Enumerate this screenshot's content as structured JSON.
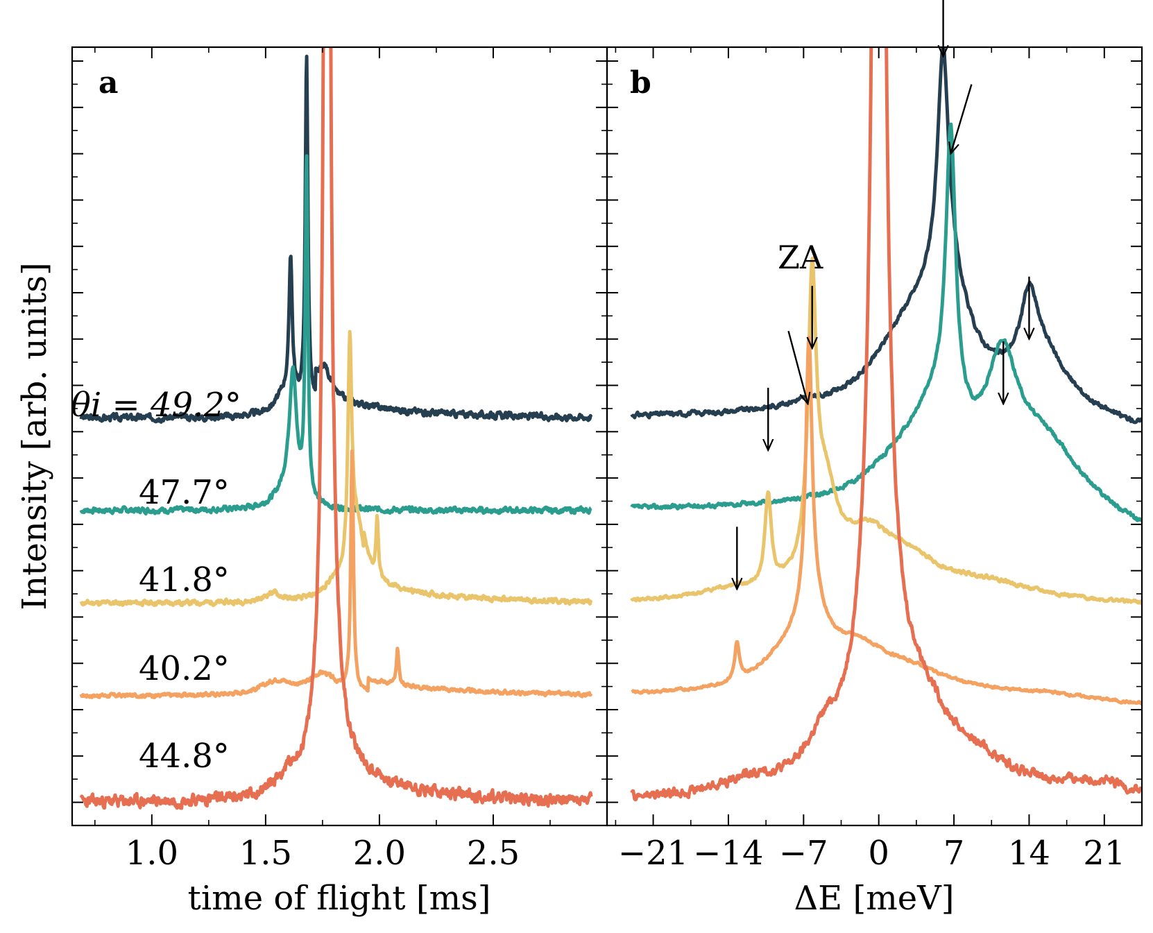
{
  "figure": {
    "ylabel": "Intensity [arb. units]",
    "annotation_label": "ZA"
  },
  "chart_data": [
    {
      "panel": "a",
      "type": "line",
      "xlabel": "time of flight [ms]",
      "ylabel": "Intensity [arb. units]",
      "xlim": [
        0.65,
        3.0
      ],
      "xticks": [
        1.0,
        1.5,
        2.0,
        2.5
      ],
      "xtick_labels": [
        "1.0",
        "1.5",
        "2.0",
        "2.5"
      ],
      "ylim": [
        -0.5,
        16.3
      ],
      "series": [
        {
          "name": "θi = 49.2°",
          "label": "θi = 49.2°",
          "color": "#263f50",
          "offset": 8.3,
          "noise": 0.12,
          "seed": 3,
          "peaks": [
            [
              1.61,
              2.9,
              0.008
            ],
            [
              1.68,
              7.5,
              0.007
            ],
            [
              1.76,
              0.6,
              0.03
            ],
            [
              1.6,
              0.6,
              0.06
            ]
          ],
          "tail": [
            [
              1.72,
              0.45,
              0.35
            ]
          ]
        },
        {
          "name": "47.7°",
          "label": "47.7°",
          "color": "#2a9d8f",
          "offset": 6.3,
          "noise": 0.1,
          "seed": 7,
          "peaks": [
            [
              1.62,
              2.6,
              0.018
            ],
            [
              1.68,
              7.3,
              0.007
            ],
            [
              1.6,
              0.5,
              0.06
            ]
          ],
          "tail": []
        },
        {
          "name": "41.8°",
          "label": "41.8°",
          "color": "#e9c46a",
          "offset": 4.3,
          "noise": 0.09,
          "seed": 11,
          "peaks": [
            [
              1.87,
              4.7,
              0.01
            ],
            [
              1.9,
              1.6,
              0.04
            ],
            [
              1.99,
              1.3,
              0.006
            ],
            [
              1.53,
              0.2,
              0.04
            ],
            [
              1.8,
              0.3,
              0.06
            ]
          ],
          "tail": [
            [
              1.93,
              0.35,
              0.4
            ]
          ]
        },
        {
          "name": "40.2°",
          "label": "40.2°",
          "color": "#f4a261",
          "offset": 2.3,
          "noise": 0.07,
          "seed": 17,
          "peaks": [
            [
              1.88,
              5.2,
              0.007
            ],
            [
              2.08,
              0.75,
              0.006
            ],
            [
              1.75,
              0.45,
              0.07
            ],
            [
              1.55,
              0.3,
              0.08
            ]
          ],
          "tail": [
            [
              1.95,
              0.3,
              0.4
            ]
          ]
        },
        {
          "name": "44.8°",
          "label": "44.8°",
          "color": "#e76f51",
          "offset": 0.0,
          "noise": 0.22,
          "seed": 23,
          "peaks": [
            [
              1.77,
              40.0,
              0.012
            ],
            [
              1.77,
              3.0,
              0.05
            ],
            [
              1.6,
              0.4,
              0.08
            ]
          ],
          "tail": [
            [
              1.8,
              0.6,
              0.35
            ]
          ]
        }
      ]
    },
    {
      "panel": "b",
      "type": "line",
      "xlabel": "ΔE [meV]",
      "xlim": [
        -25.3,
        24.5
      ],
      "xticks": [
        -21,
        -14,
        -7,
        0,
        7,
        14,
        21
      ],
      "xtick_labels": [
        "−21",
        "−14",
        "−7",
        "0",
        "7",
        "14",
        "21"
      ],
      "ylim": [
        -0.5,
        16.3
      ],
      "series": [
        {
          "name": "θi = 49.2°",
          "color": "#263f50",
          "offset": 8.3,
          "noise": 0.09,
          "seed": 31,
          "rightdrop": 0.3,
          "peaks": [
            [
              6.0,
              4.6,
              0.6
            ],
            [
              6.2,
              2.5,
              2.6
            ],
            [
              2.5,
              1.4,
              3.8
            ],
            [
              14.0,
              1.4,
              0.9
            ],
            [
              15.0,
              1.2,
              3.0
            ],
            [
              -7,
              0.1,
              2.5
            ]
          ]
        },
        {
          "name": "47.7°",
          "color": "#2a9d8f",
          "offset": 6.3,
          "noise": 0.08,
          "seed": 37,
          "rightdrop": 0.6,
          "peaks": [
            [
              6.7,
              6.0,
              0.55
            ],
            [
              5.5,
              1.7,
              3.0
            ],
            [
              11.5,
              2.3,
              1.7
            ],
            [
              15.0,
              1.3,
              5.0
            ],
            [
              2.0,
              0.6,
              4.0
            ]
          ]
        },
        {
          "name": "41.8°",
          "color": "#e9c46a",
          "offset": 4.3,
          "noise": 0.07,
          "seed": 41,
          "rightdrop": 0.05,
          "peaks": [
            [
              -6.2,
              5.8,
              0.45
            ],
            [
              -10.3,
              2.0,
              0.35
            ],
            [
              -5.0,
              2.0,
              1.4
            ],
            [
              -1.0,
              1.2,
              3.0
            ],
            [
              3.0,
              0.6,
              3.5
            ],
            [
              10.0,
              0.35,
              5.0
            ],
            [
              -14.0,
              0.2,
              3.0
            ]
          ]
        },
        {
          "name": "40.2°",
          "color": "#f4a261",
          "offset": 2.3,
          "noise": 0.05,
          "seed": 43,
          "rightdrop": 0.2,
          "peaks": [
            [
              -6.5,
              5.7,
              0.35
            ],
            [
              -13.2,
              0.8,
              0.25
            ],
            [
              -6.3,
              1.4,
              1.8
            ],
            [
              -9.0,
              0.5,
              3.0
            ],
            [
              -2.0,
              0.8,
              3.5
            ],
            [
              3.0,
              0.4,
              4.5
            ]
          ]
        },
        {
          "name": "44.8°",
          "color": "#e76f51",
          "offset": 0.0,
          "noise": 0.18,
          "seed": 47,
          "rightdrop": 0.0,
          "peaks": [
            [
              0.0,
              40.0,
              0.45
            ],
            [
              0.0,
              4.5,
              2.0
            ],
            [
              -5.0,
              0.8,
              2.0
            ],
            [
              4.0,
              1.4,
              3.0
            ],
            [
              9.0,
              0.6,
              4.5
            ],
            [
              -12.0,
              0.3,
              4.0
            ],
            [
              20.0,
              0.3,
              4.0
            ]
          ]
        }
      ],
      "arrows": [
        {
          "x": 6.0,
          "y": 16.1,
          "series": "θi = 49.2°",
          "label": ""
        },
        {
          "x": 6.7,
          "y": 14.0,
          "series": "47.7°",
          "label": ""
        },
        {
          "x": 14.0,
          "y": 10.0,
          "series": "θi = 49.2°",
          "label": ""
        },
        {
          "x": 11.6,
          "y": 8.6,
          "series": "47.7°",
          "label": ""
        },
        {
          "x": -6.2,
          "y": 9.8,
          "series": "41.8°",
          "label": "ZA"
        },
        {
          "x": -6.6,
          "y": 8.6,
          "series": "40.2°",
          "label": ""
        },
        {
          "x": -10.3,
          "y": 7.6,
          "series": "41.8°",
          "label": ""
        },
        {
          "x": -13.2,
          "y": 4.6,
          "series": "40.2°",
          "label": ""
        }
      ]
    }
  ]
}
